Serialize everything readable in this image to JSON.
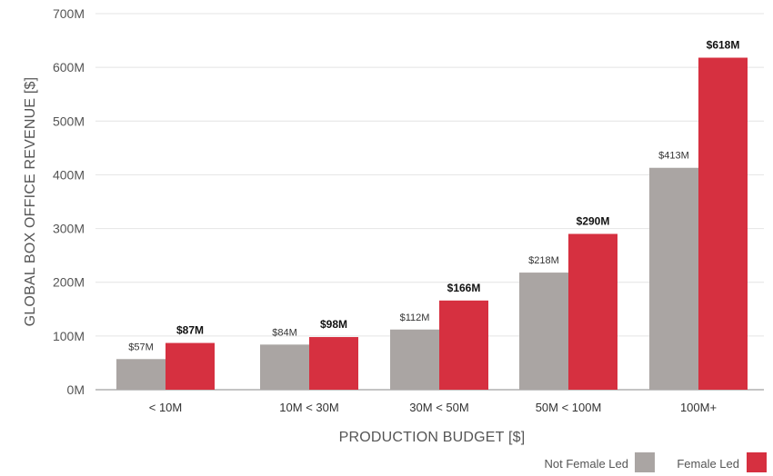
{
  "chart_data": {
    "type": "bar",
    "xlabel": "PRODUCTION BUDGET  [$]",
    "ylabel": "GLOBAL BOX OFFICE REVENUE  [$]",
    "categories": [
      "< 10M",
      "10M < 30M",
      "30M < 50M",
      "50M < 100M",
      "100M+"
    ],
    "series": [
      {
        "name": "Not Female Led",
        "color": "#aaa5a3",
        "values": [
          57,
          84,
          112,
          218,
          413
        ],
        "labels": [
          "$57M",
          "$84M",
          "$112M",
          "$218M",
          "$413M"
        ]
      },
      {
        "name": "Female Led",
        "color": "#d63040",
        "values": [
          87,
          98,
          166,
          290,
          618
        ],
        "labels": [
          "$87M",
          "$98M",
          "$166M",
          "$290M",
          "$618M"
        ]
      }
    ],
    "ylim": [
      0,
      700
    ],
    "yticks": [
      0,
      100,
      200,
      300,
      400,
      500,
      600,
      700
    ],
    "ytick_labels": [
      "0M",
      "100M",
      "200M",
      "300M",
      "400M",
      "500M",
      "600M",
      "700M"
    ],
    "grid": true,
    "legend_position": "bottom-right"
  }
}
